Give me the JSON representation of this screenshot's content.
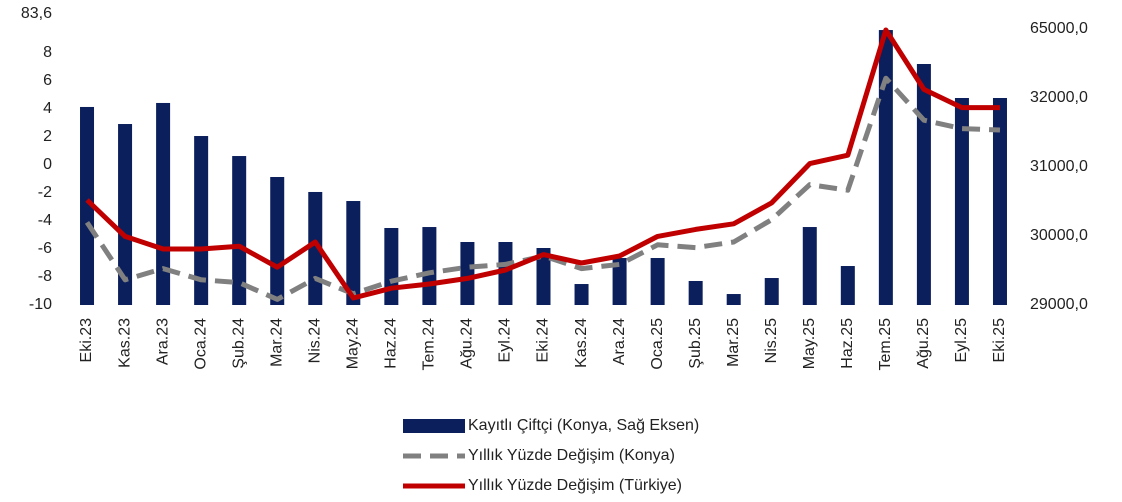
{
  "chart_data": {
    "type": "bar_line",
    "categories": [
      "Eki.23",
      "Kas.23",
      "Ara.23",
      "Oca.24",
      "Şub.24",
      "Mar.24",
      "Nis.24",
      "May.24",
      "Haz.24",
      "Tem.24",
      "Ağu.24",
      "Eyl.24",
      "Eki.24",
      "Kas.24",
      "Ara.24",
      "Oca.25",
      "Şub.25",
      "Mar.25",
      "Nis.25",
      "May.25",
      "Haz.25",
      "Tem.25",
      "Ağu.25",
      "Eyl.25",
      "Eki.25"
    ],
    "series": [
      {
        "name": "Kayıtlı Çiftçi (Konya, Sağ Eksen)",
        "type": "bar",
        "axis": "y2",
        "color": "#0b1f5c",
        "values": [
          31870,
          31623,
          31928,
          31449,
          31159,
          30855,
          30638,
          30507,
          30116,
          30130,
          29913,
          29913,
          29826,
          29304,
          29681,
          29681,
          29348,
          29159,
          29391,
          30130,
          29565,
          64500,
          48260,
          32000,
          32000
        ]
      },
      {
        "name": "Yıllık Yüzde Değişim (Konya)",
        "type": "line",
        "dashed": true,
        "color": "#808080",
        "values": [
          -4.1,
          -8.2,
          -7.4,
          -8.2,
          -8.4,
          -9.6,
          -8.1,
          -9.2,
          -8.3,
          -7.7,
          -7.3,
          -7.1,
          -6.5,
          -7.4,
          -7.1,
          -5.7,
          -5.9,
          -5.5,
          -3.9,
          -1.4,
          -1.8,
          6.2,
          3.2,
          2.6,
          2.5
        ]
      },
      {
        "name": "Yıllık Yüzde Değişim (Türkiye)",
        "type": "line",
        "dashed": false,
        "color": "#c00000",
        "values": [
          -2.5,
          -5.1,
          -6.0,
          -6.0,
          -5.8,
          -7.3,
          -5.5,
          -9.5,
          -8.8,
          -8.5,
          -8.1,
          -7.5,
          -6.4,
          -7.0,
          -6.5,
          -5.1,
          -4.6,
          -4.2,
          -2.7,
          0.1,
          0.7,
          52.6,
          5.4,
          4.1,
          4.1
        ]
      }
    ],
    "ylim": [
      -10,
      83.6
    ],
    "yticks": [
      -10,
      -8,
      -6,
      -4,
      -2,
      0,
      2,
      4,
      6,
      8,
      {
        "value": 83.6,
        "label": "83,6"
      }
    ],
    "y2lim": [
      29000,
      65000
    ],
    "y2ticks": [
      {
        "value": 29000,
        "label": "29000,0"
      },
      {
        "value": 30000,
        "label": "30000,0"
      },
      {
        "value": 31000,
        "label": "31000,0"
      },
      {
        "value": 32000,
        "label": "32000,0"
      },
      {
        "value": 65000,
        "label": "65000,0"
      }
    ],
    "legend": "bottom"
  }
}
